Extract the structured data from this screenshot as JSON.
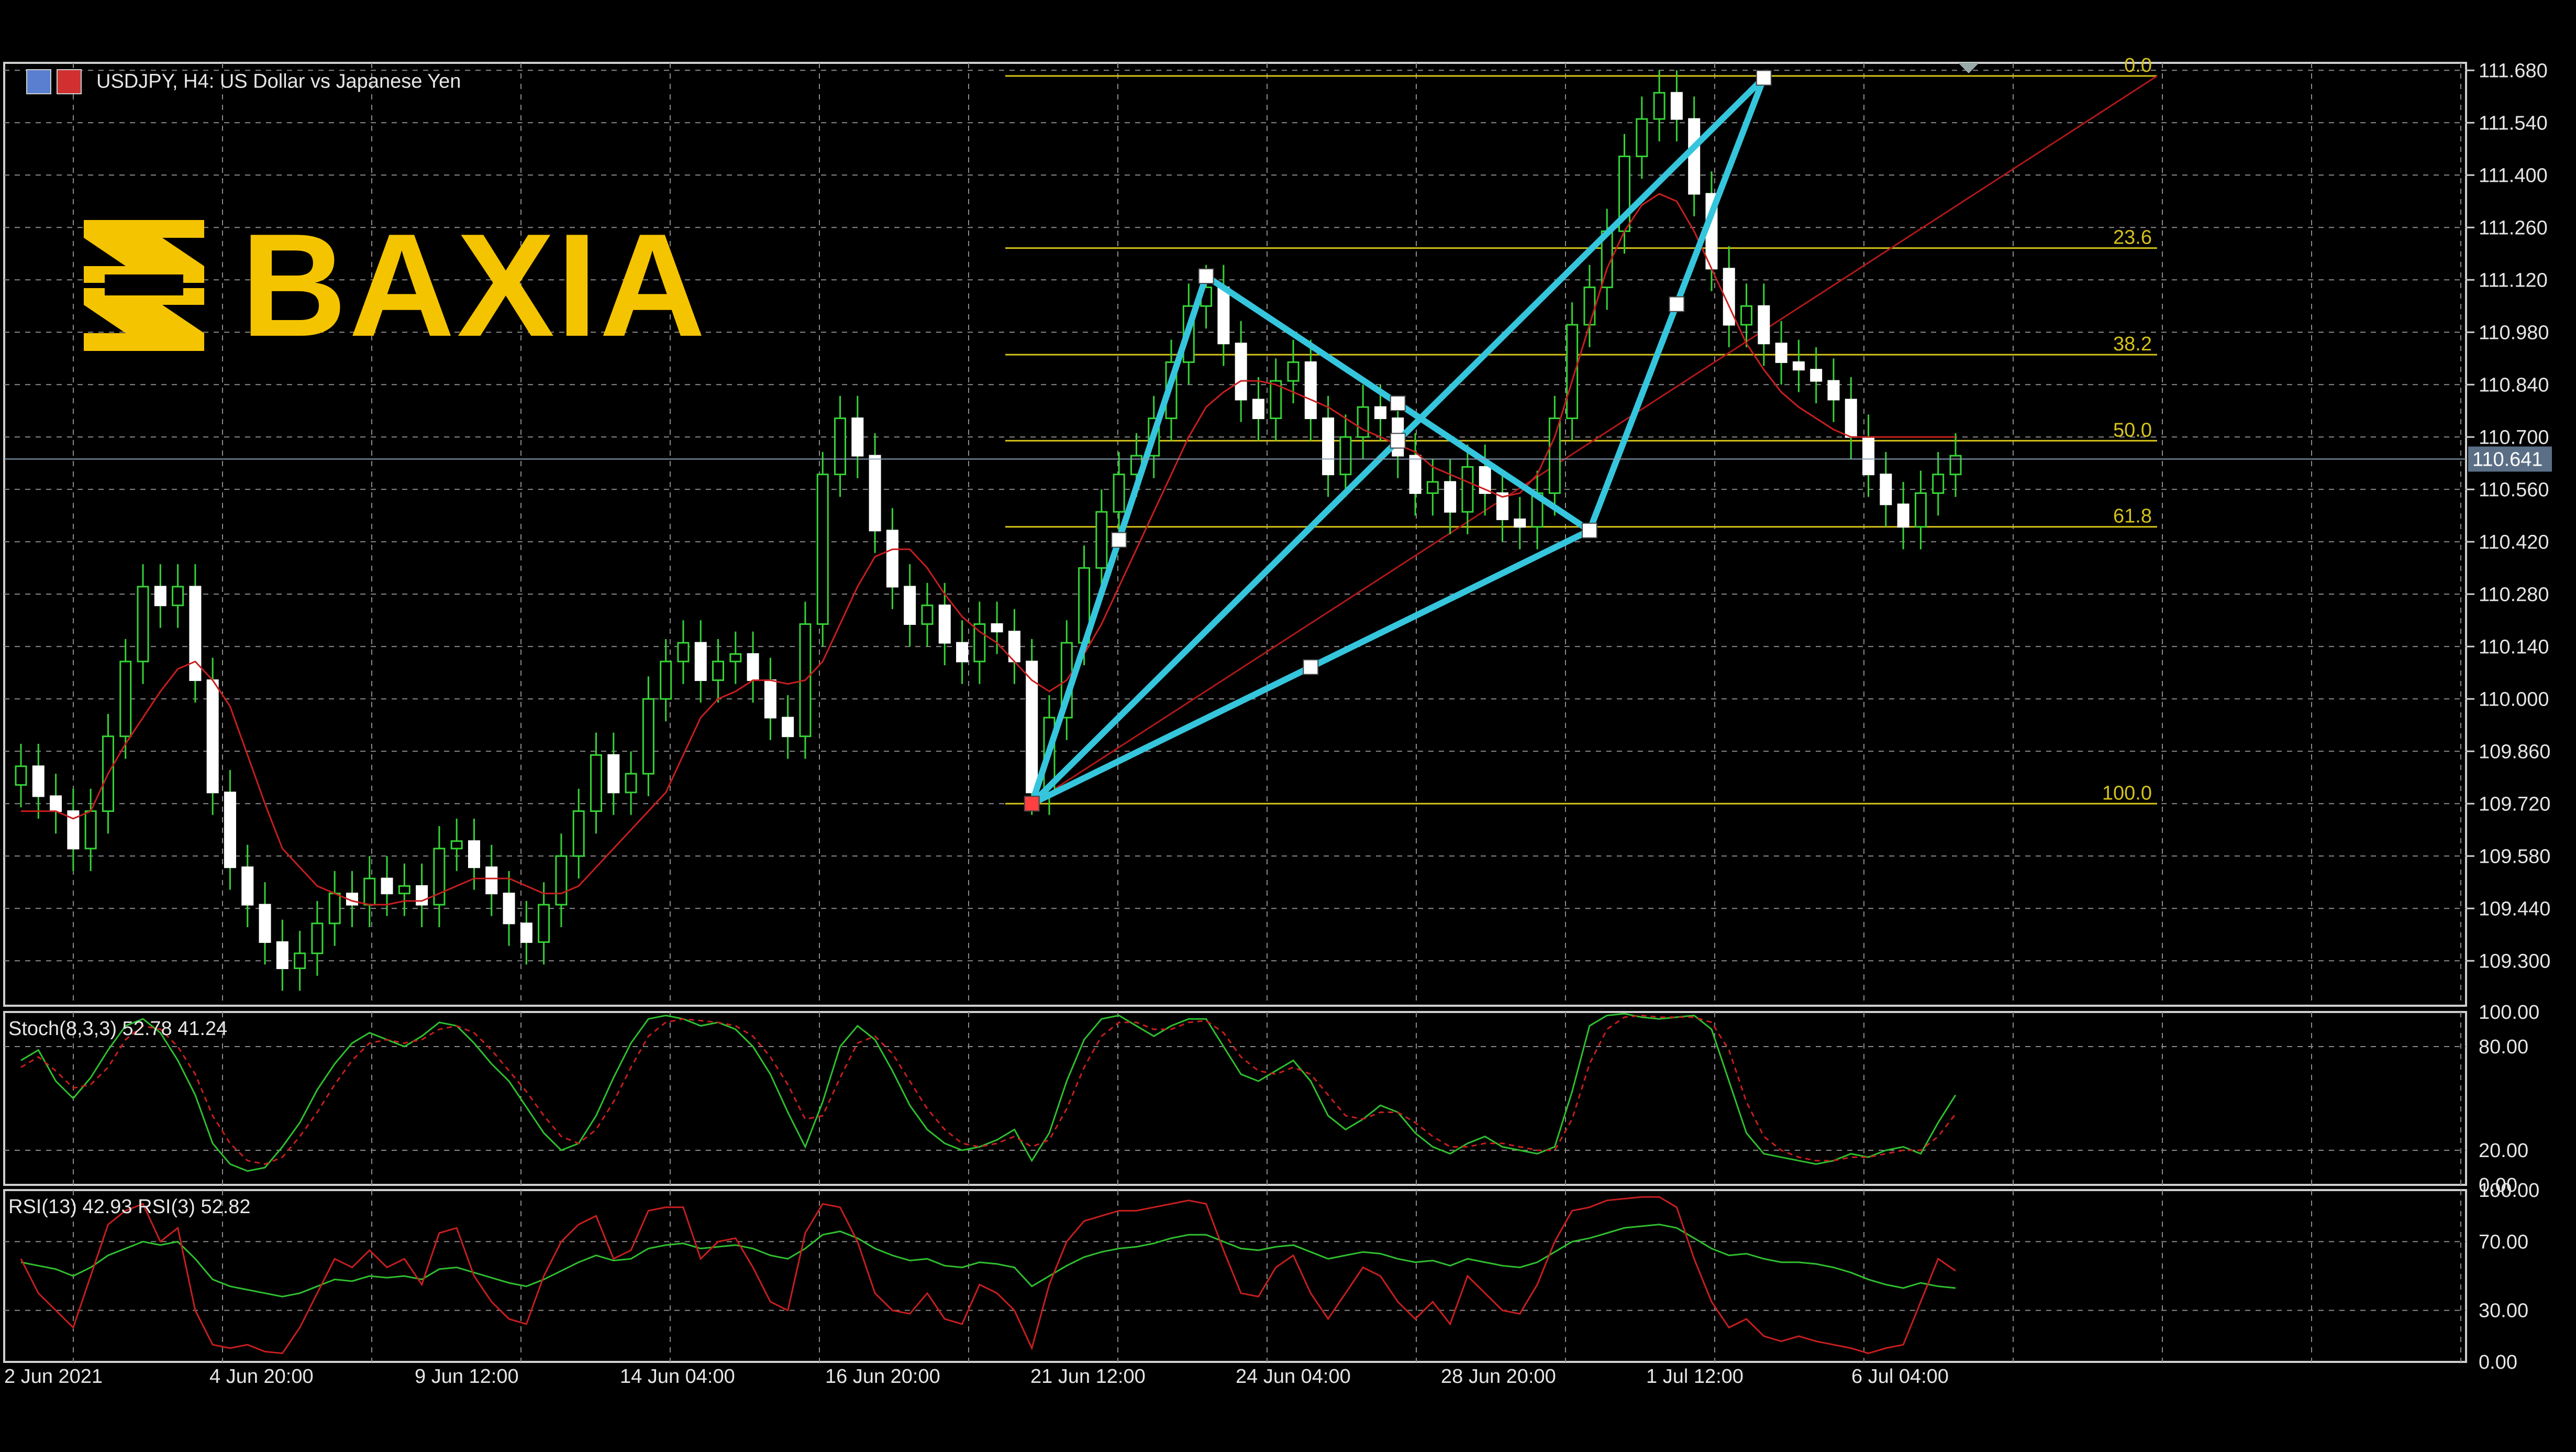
{
  "header": {
    "title": "USDJPY, H4:  US Dollar vs Japanese Yen",
    "logo_text": "BAXIA"
  },
  "colors": {
    "background": "#000000",
    "grid": "#8a8a8a",
    "bull_candle": "#35d435",
    "bear_candle": "#ffffff",
    "moving_average": "#c81e1e",
    "pattern": "#35c6dd",
    "fibonacci": "#d4c21a",
    "trendline": "#b01818",
    "logo": "#f5c400",
    "oscillator_green": "#2fbf2f",
    "oscillator_red": "#c81e1e",
    "axis_text": "#e6e6e6"
  },
  "chart_data": [
    {
      "type": "candlestick",
      "symbol": "USDJPY",
      "timeframe": "H4",
      "title": "USDJPY, H4:  US Dollar vs Japanese Yen",
      "ylim": [
        109.18,
        111.7
      ],
      "y_ticks": [
        "111.680",
        "111.540",
        "111.400",
        "111.260",
        "111.120",
        "110.980",
        "110.840",
        "110.700",
        "110.560",
        "110.420",
        "110.280",
        "110.140",
        "110.000",
        "109.860",
        "109.720",
        "109.580",
        "109.440",
        "109.300"
      ],
      "current_price": "110.641",
      "x_ticks": [
        "2 Jun 2021",
        "4 Jun 20:00",
        "9 Jun 12:00",
        "14 Jun 04:00",
        "16 Jun 20:00",
        "21 Jun 12:00",
        "24 Jun 04:00",
        "28 Jun 20:00",
        "1 Jul 12:00",
        "6 Jul 04:00"
      ],
      "closes": [
        109.82,
        109.74,
        109.7,
        109.6,
        109.7,
        109.9,
        110.1,
        110.3,
        110.25,
        110.3,
        110.05,
        109.75,
        109.55,
        109.45,
        109.35,
        109.28,
        109.32,
        109.4,
        109.48,
        109.45,
        109.52,
        109.48,
        109.5,
        109.45,
        109.6,
        109.62,
        109.55,
        109.48,
        109.4,
        109.35,
        109.45,
        109.58,
        109.7,
        109.85,
        109.75,
        109.8,
        110.0,
        110.1,
        110.15,
        110.05,
        110.1,
        110.12,
        110.05,
        109.95,
        109.9,
        110.2,
        110.6,
        110.75,
        110.65,
        110.45,
        110.3,
        110.2,
        110.25,
        110.15,
        110.1,
        110.2,
        110.18,
        110.1,
        109.75,
        109.95,
        110.15,
        110.35,
        110.5,
        110.6,
        110.65,
        110.75,
        110.9,
        111.05,
        111.1,
        110.95,
        110.8,
        110.75,
        110.85,
        110.9,
        110.75,
        110.6,
        110.7,
        110.78,
        110.75,
        110.65,
        110.55,
        110.58,
        110.5,
        110.62,
        110.55,
        110.48,
        110.46,
        110.55,
        110.75,
        111.0,
        111.1,
        111.25,
        111.45,
        111.55,
        111.62,
        111.55,
        111.35,
        111.15,
        111.0,
        111.05,
        110.95,
        110.9,
        110.88,
        110.85,
        110.8,
        110.7,
        110.6,
        110.52,
        110.46,
        110.55,
        110.6,
        110.65
      ],
      "moving_average": [
        109.7,
        109.7,
        109.7,
        109.68,
        109.7,
        109.8,
        109.88,
        109.95,
        110.02,
        110.08,
        110.1,
        110.05,
        109.98,
        109.85,
        109.72,
        109.6,
        109.55,
        109.5,
        109.48,
        109.46,
        109.45,
        109.45,
        109.46,
        109.46,
        109.48,
        109.5,
        109.52,
        109.52,
        109.52,
        109.5,
        109.48,
        109.48,
        109.5,
        109.55,
        109.6,
        109.65,
        109.7,
        109.75,
        109.85,
        109.95,
        110.0,
        110.02,
        110.05,
        110.05,
        110.04,
        110.05,
        110.1,
        110.2,
        110.3,
        110.38,
        110.4,
        110.4,
        110.35,
        110.28,
        110.22,
        110.18,
        110.15,
        110.1,
        110.05,
        110.02,
        110.05,
        110.12,
        110.2,
        110.3,
        110.4,
        110.5,
        110.6,
        110.7,
        110.78,
        110.82,
        110.85,
        110.85,
        110.84,
        110.82,
        110.8,
        110.78,
        110.75,
        110.72,
        110.7,
        110.68,
        110.66,
        110.62,
        110.6,
        110.58,
        110.56,
        110.54,
        110.55,
        110.6,
        110.7,
        110.85,
        111.0,
        111.15,
        111.25,
        111.32,
        111.35,
        111.33,
        111.25,
        111.15,
        111.05,
        110.95,
        110.88,
        110.82,
        110.78,
        110.75,
        110.72,
        110.7,
        110.7,
        110.7,
        110.7,
        110.7,
        110.7,
        110.7
      ],
      "harmonic_pattern": [
        {
          "candle": 58,
          "price": 109.72
        },
        {
          "candle": 68,
          "price": 111.13
        },
        {
          "candle": 90,
          "price": 110.45
        },
        {
          "candle": 100,
          "price": 111.66
        },
        {
          "candle": 58,
          "price": 109.72
        },
        {
          "candle": 90,
          "price": 110.45
        }
      ],
      "fibonacci_levels": [
        {
          "label": "0.0",
          "price": 111.665
        },
        {
          "label": "23.6",
          "price": 111.205
        },
        {
          "label": "38.2",
          "price": 110.92
        },
        {
          "label": "50.0",
          "price": 110.69
        },
        {
          "label": "61.8",
          "price": 110.46
        },
        {
          "label": "100.0",
          "price": 109.72
        }
      ]
    },
    {
      "type": "line",
      "title": "Stoch(8,3,3) 52.78 41.24",
      "ylim": [
        0,
        100
      ],
      "y_ticks": [
        "100.00",
        "80.00",
        "20.00",
        "0.00"
      ],
      "series": [
        {
          "values": [
            72,
            78,
            60,
            50,
            62,
            78,
            92,
            96,
            88,
            72,
            52,
            24,
            12,
            8,
            10,
            22,
            36,
            55,
            70,
            82,
            88,
            84,
            80,
            86,
            94,
            92,
            82,
            70,
            60,
            45,
            30,
            20,
            24,
            40,
            62,
            82,
            96,
            98,
            96,
            92,
            94,
            90,
            80,
            64,
            42,
            22,
            48,
            80,
            92,
            84,
            66,
            46,
            32,
            24,
            20,
            22,
            26,
            32,
            14,
            30,
            60,
            84,
            96,
            98,
            92,
            86,
            92,
            96,
            96,
            80,
            64,
            60,
            66,
            72,
            60,
            40,
            32,
            38,
            46,
            42,
            30,
            22,
            18,
            24,
            28,
            22,
            20,
            18,
            22,
            54,
            92,
            98,
            99,
            97,
            96,
            97,
            98,
            90,
            60,
            30,
            18,
            16,
            14,
            12,
            14,
            18,
            16,
            20,
            22,
            18,
            36,
            52
          ]
        },
        {
          "values": [
            68,
            74,
            66,
            56,
            58,
            68,
            84,
            92,
            90,
            80,
            64,
            40,
            24,
            14,
            12,
            16,
            28,
            42,
            58,
            72,
            82,
            84,
            82,
            84,
            90,
            92,
            88,
            78,
            66,
            54,
            40,
            28,
            24,
            32,
            48,
            68,
            86,
            94,
            96,
            95,
            94,
            92,
            86,
            74,
            58,
            38,
            40,
            62,
            82,
            86,
            76,
            60,
            44,
            32,
            24,
            22,
            24,
            28,
            22,
            26,
            44,
            68,
            86,
            94,
            94,
            90,
            90,
            94,
            95,
            88,
            74,
            66,
            64,
            68,
            64,
            52,
            40,
            38,
            42,
            42,
            36,
            28,
            22,
            22,
            24,
            24,
            22,
            20,
            20,
            38,
            70,
            90,
            97,
            98,
            97,
            97,
            97,
            94,
            78,
            48,
            28,
            20,
            16,
            14,
            14,
            16,
            16,
            18,
            20,
            20,
            28,
            41
          ]
        }
      ]
    },
    {
      "type": "line",
      "title": "RSI(13) 42.93 RSI(3) 52.82",
      "ylim": [
        0,
        100
      ],
      "y_ticks": [
        "100.00",
        "70.00",
        "30.00",
        "0.00"
      ],
      "series": [
        {
          "values": [
            58,
            56,
            54,
            50,
            55,
            62,
            66,
            70,
            68,
            70,
            60,
            48,
            44,
            42,
            40,
            38,
            40,
            44,
            48,
            47,
            50,
            49,
            50,
            48,
            54,
            55,
            52,
            49,
            46,
            44,
            48,
            53,
            58,
            62,
            59,
            60,
            66,
            68,
            69,
            66,
            67,
            68,
            66,
            62,
            60,
            66,
            74,
            76,
            72,
            66,
            62,
            59,
            60,
            56,
            55,
            58,
            57,
            55,
            44,
            50,
            56,
            61,
            64,
            66,
            67,
            69,
            72,
            74,
            74,
            70,
            66,
            65,
            67,
            68,
            64,
            60,
            62,
            64,
            63,
            60,
            58,
            59,
            56,
            60,
            58,
            56,
            55,
            58,
            64,
            70,
            72,
            75,
            78,
            79,
            80,
            78,
            72,
            66,
            62,
            63,
            60,
            58,
            58,
            57,
            55,
            52,
            48,
            45,
            43,
            46,
            44,
            43
          ]
        },
        {
          "values": [
            60,
            40,
            30,
            20,
            50,
            80,
            88,
            92,
            70,
            78,
            30,
            10,
            8,
            10,
            6,
            5,
            20,
            40,
            60,
            55,
            65,
            55,
            60,
            45,
            75,
            78,
            50,
            35,
            25,
            22,
            50,
            70,
            80,
            85,
            60,
            65,
            88,
            90,
            90,
            60,
            70,
            72,
            55,
            35,
            30,
            75,
            92,
            90,
            70,
            40,
            30,
            28,
            40,
            25,
            22,
            45,
            40,
            30,
            8,
            45,
            70,
            82,
            85,
            88,
            88,
            90,
            92,
            94,
            92,
            65,
            40,
            38,
            55,
            62,
            40,
            25,
            40,
            55,
            50,
            35,
            25,
            35,
            22,
            50,
            40,
            30,
            28,
            45,
            70,
            88,
            90,
            94,
            95,
            96,
            96,
            90,
            60,
            35,
            20,
            25,
            15,
            12,
            15,
            12,
            10,
            8,
            5,
            8,
            10,
            35,
            60,
            53
          ]
        }
      ]
    }
  ]
}
